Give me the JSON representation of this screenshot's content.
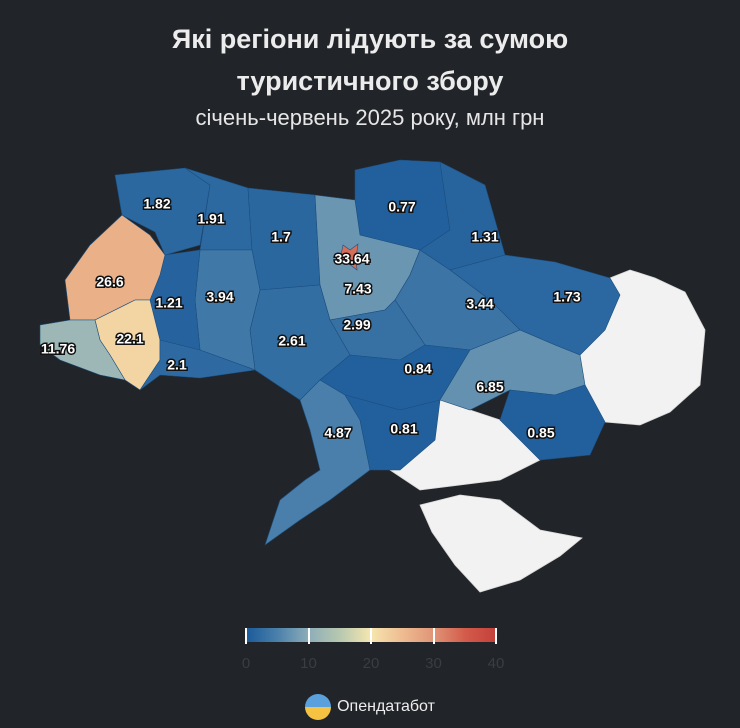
{
  "header": {
    "title_line1": "Які регіони лідують за сумою",
    "title_line2": "туристичного збору",
    "subtitle": "січень-червень 2025 року, млн грн"
  },
  "regions": [
    {
      "value": 1.82,
      "label": "1.82"
    },
    {
      "value": 1.91,
      "label": "1.91"
    },
    {
      "value": 1.7,
      "label": "1.7"
    },
    {
      "value": 0.77,
      "label": "0.77"
    },
    {
      "value": 7.43,
      "label": "7.43"
    },
    {
      "value": 1.31,
      "label": "1.31"
    },
    {
      "value": 1.73,
      "label": "1.73"
    },
    {
      "value": 3.44,
      "label": "3.44"
    },
    {
      "value": 2.99,
      "label": "2.99"
    },
    {
      "value": 2.61,
      "label": "2.61"
    },
    {
      "value": 3.94,
      "label": "3.94"
    },
    {
      "value": 1.21,
      "label": "1.21"
    },
    {
      "value": 26.6,
      "label": "26.6"
    },
    {
      "value": 22.1,
      "label": "22.1"
    },
    {
      "value": 11.76,
      "label": "11.76"
    },
    {
      "value": 2.1,
      "label": "2.1"
    },
    {
      "value": 0.84,
      "label": "0.84"
    },
    {
      "value": 6.85,
      "label": "6.85"
    },
    {
      "value": 4.87,
      "label": "4.87"
    },
    {
      "value": 0.81,
      "label": "0.81"
    },
    {
      "value": 0.85,
      "label": "0.85"
    },
    {
      "value": 33.64,
      "label": "33.64"
    }
  ],
  "no_data_color": "#f2f2f2",
  "color_scale": {
    "min": 0,
    "max": 40,
    "stops": [
      [
        "0",
        "#1a5a9a"
      ],
      [
        "5",
        "#4a80aa"
      ],
      [
        "10",
        "#8dadb8"
      ],
      [
        "15",
        "#b7c8b0"
      ],
      [
        "20",
        "#f6e6b0"
      ],
      [
        "25",
        "#eebc90"
      ],
      [
        "30",
        "#e09577"
      ],
      [
        "35",
        "#d35c4b"
      ],
      [
        "40",
        "#c4403a"
      ]
    ]
  },
  "legend": {
    "ticks": [
      "0",
      "10",
      "20",
      "30",
      "40"
    ]
  },
  "brand": {
    "name": "Опендатабот",
    "icon": "opendatabot-logo-icon"
  }
}
